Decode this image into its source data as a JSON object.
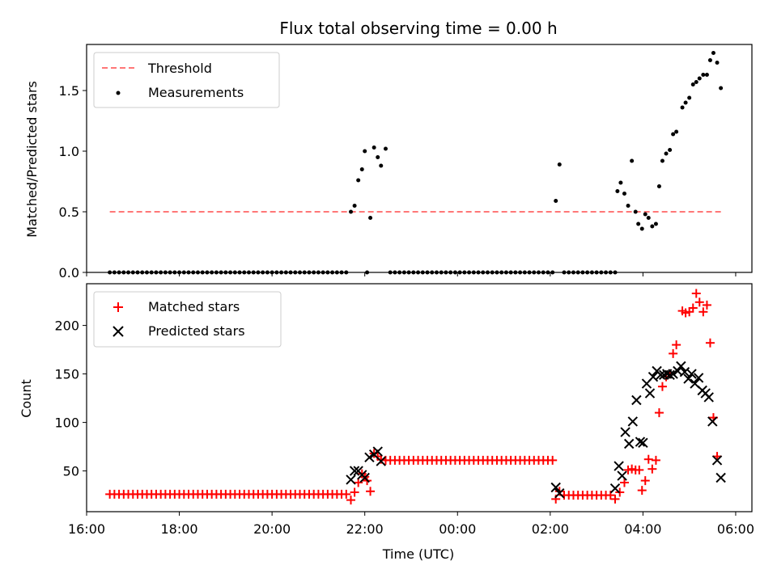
{
  "chart_data": [
    {
      "panel": "top",
      "type": "scatter",
      "title": "Flux total observing time = 0.00 h",
      "xlabel": "",
      "ylabel": "Matched/Predicted stars",
      "xlim": [
        16.0,
        6.35
      ],
      "ylim": [
        0.0,
        1.88
      ],
      "yticks": [
        0.0,
        0.5,
        1.0,
        1.5
      ],
      "ytick_labels": [
        "0.0",
        "0.5",
        "1.0",
        "1.5"
      ],
      "legend": {
        "placement": "top-left",
        "entries": [
          "Threshold",
          "Measurements"
        ]
      },
      "threshold": {
        "name": "Threshold",
        "value": 0.5,
        "x_start": 16.5,
        "x_end": 5.75,
        "color": "#ff7777"
      },
      "measurements": {
        "name": "Measurements",
        "color": "#000000",
        "points": [
          [
            16.5,
            0
          ],
          [
            16.6,
            0
          ],
          [
            16.7,
            0
          ],
          [
            16.8,
            0
          ],
          [
            16.9,
            0
          ],
          [
            17.0,
            0
          ],
          [
            17.1,
            0
          ],
          [
            17.2,
            0
          ],
          [
            17.3,
            0
          ],
          [
            17.4,
            0
          ],
          [
            17.5,
            0
          ],
          [
            17.6,
            0
          ],
          [
            17.7,
            0
          ],
          [
            17.8,
            0
          ],
          [
            17.9,
            0
          ],
          [
            18.0,
            0
          ],
          [
            18.1,
            0
          ],
          [
            18.2,
            0
          ],
          [
            18.3,
            0
          ],
          [
            18.4,
            0
          ],
          [
            18.5,
            0
          ],
          [
            18.6,
            0
          ],
          [
            18.7,
            0
          ],
          [
            18.8,
            0
          ],
          [
            18.9,
            0
          ],
          [
            19.0,
            0
          ],
          [
            19.1,
            0
          ],
          [
            19.2,
            0
          ],
          [
            19.3,
            0
          ],
          [
            19.4,
            0
          ],
          [
            19.5,
            0
          ],
          [
            19.6,
            0
          ],
          [
            19.7,
            0
          ],
          [
            19.8,
            0
          ],
          [
            19.9,
            0
          ],
          [
            20.0,
            0
          ],
          [
            20.1,
            0
          ],
          [
            20.2,
            0
          ],
          [
            20.3,
            0
          ],
          [
            20.4,
            0
          ],
          [
            20.5,
            0
          ],
          [
            20.6,
            0
          ],
          [
            20.7,
            0
          ],
          [
            20.8,
            0
          ],
          [
            20.9,
            0
          ],
          [
            21.0,
            0
          ],
          [
            21.1,
            0
          ],
          [
            21.2,
            0
          ],
          [
            21.3,
            0
          ],
          [
            21.4,
            0
          ],
          [
            21.5,
            0
          ],
          [
            21.6,
            0
          ],
          [
            21.7,
            0.5
          ],
          [
            21.78,
            0.55
          ],
          [
            21.86,
            0.76
          ],
          [
            21.94,
            0.85
          ],
          [
            22.0,
            1.0
          ],
          [
            22.05,
            0.0
          ],
          [
            22.12,
            0.45
          ],
          [
            22.2,
            1.03
          ],
          [
            22.28,
            0.95
          ],
          [
            22.35,
            0.88
          ],
          [
            22.45,
            1.02
          ],
          [
            22.55,
            0
          ],
          [
            22.65,
            0
          ],
          [
            22.75,
            0
          ],
          [
            22.85,
            0
          ],
          [
            22.95,
            0
          ],
          [
            23.05,
            0
          ],
          [
            23.15,
            0
          ],
          [
            23.25,
            0
          ],
          [
            23.35,
            0
          ],
          [
            23.45,
            0
          ],
          [
            23.55,
            0
          ],
          [
            23.65,
            0
          ],
          [
            23.75,
            0
          ],
          [
            23.85,
            0
          ],
          [
            23.95,
            0
          ],
          [
            24.05,
            0
          ],
          [
            24.15,
            0
          ],
          [
            24.25,
            0
          ],
          [
            24.35,
            0
          ],
          [
            24.45,
            0
          ],
          [
            24.55,
            0
          ],
          [
            24.65,
            0
          ],
          [
            24.75,
            0
          ],
          [
            24.85,
            0
          ],
          [
            24.95,
            0
          ],
          [
            25.05,
            0
          ],
          [
            25.15,
            0
          ],
          [
            25.25,
            0
          ],
          [
            25.35,
            0
          ],
          [
            25.45,
            0
          ],
          [
            25.55,
            0
          ],
          [
            25.65,
            0
          ],
          [
            25.75,
            0
          ],
          [
            25.85,
            0
          ],
          [
            25.95,
            0
          ],
          [
            26.05,
            0
          ],
          [
            26.12,
            0.59
          ],
          [
            26.2,
            0.89
          ],
          [
            26.3,
            0
          ],
          [
            26.4,
            0
          ],
          [
            26.5,
            0
          ],
          [
            26.6,
            0
          ],
          [
            26.7,
            0
          ],
          [
            26.8,
            0
          ],
          [
            26.9,
            0
          ],
          [
            27.0,
            0
          ],
          [
            27.1,
            0
          ],
          [
            27.2,
            0
          ],
          [
            27.3,
            0
          ],
          [
            27.4,
            0
          ],
          [
            27.45,
            0.67
          ],
          [
            27.52,
            0.74
          ],
          [
            27.6,
            0.65
          ],
          [
            27.68,
            0.55
          ],
          [
            27.76,
            0.92
          ],
          [
            27.84,
            0.5
          ],
          [
            27.9,
            0.4
          ],
          [
            27.98,
            0.36
          ],
          [
            28.05,
            0.48
          ],
          [
            28.12,
            0.45
          ],
          [
            28.2,
            0.38
          ],
          [
            28.28,
            0.4
          ],
          [
            28.35,
            0.71
          ],
          [
            28.42,
            0.92
          ],
          [
            28.5,
            0.98
          ],
          [
            28.58,
            1.01
          ],
          [
            28.65,
            1.14
          ],
          [
            28.72,
            1.16
          ],
          [
            28.85,
            1.36
          ],
          [
            28.92,
            1.4
          ],
          [
            29.0,
            1.44
          ],
          [
            29.08,
            1.55
          ],
          [
            29.15,
            1.57
          ],
          [
            29.22,
            1.6
          ],
          [
            29.3,
            1.63
          ],
          [
            29.38,
            1.63
          ],
          [
            29.45,
            1.75
          ],
          [
            29.52,
            1.81
          ],
          [
            29.6,
            1.73
          ],
          [
            29.68,
            1.52
          ]
        ]
      }
    },
    {
      "panel": "bottom",
      "type": "scatter",
      "title": "",
      "xlabel": "Time (UTC)",
      "ylabel": "Count",
      "xlim": [
        16.0,
        6.35
      ],
      "ylim": [
        8,
        243
      ],
      "xticks": [
        16,
        18,
        20,
        22,
        24,
        26,
        28,
        30
      ],
      "xtick_labels": [
        "16:00",
        "18:00",
        "20:00",
        "22:00",
        "00:00",
        "02:00",
        "04:00",
        "06:00"
      ],
      "yticks": [
        50,
        100,
        150,
        200
      ],
      "ytick_labels": [
        "50",
        "100",
        "150",
        "200"
      ],
      "legend": {
        "placement": "top-left",
        "entries": [
          "Matched stars",
          "Predicted stars"
        ]
      },
      "series": [
        {
          "name": "Matched stars",
          "marker": "plus",
          "color": "#ff0000",
          "baseline_runs": [
            {
              "x_start": 16.5,
              "x_end": 21.6,
              "step": 0.1,
              "value": 26
            },
            {
              "x_start": 22.55,
              "x_end": 26.05,
              "step": 0.1,
              "value": 61
            },
            {
              "x_start": 26.3,
              "x_end": 27.3,
              "step": 0.1,
              "value": 25
            }
          ],
          "points": [
            [
              21.7,
              20
            ],
            [
              21.78,
              28
            ],
            [
              21.86,
              38
            ],
            [
              21.94,
              47
            ],
            [
              22.0,
              44
            ],
            [
              22.05,
              40
            ],
            [
              22.12,
              29
            ],
            [
              22.2,
              68
            ],
            [
              22.28,
              65
            ],
            [
              22.35,
              62
            ],
            [
              22.45,
              61
            ],
            [
              26.12,
              21
            ],
            [
              26.2,
              29
            ],
            [
              27.4,
              21
            ],
            [
              27.5,
              28
            ],
            [
              27.6,
              38
            ],
            [
              27.68,
              51
            ],
            [
              27.76,
              52
            ],
            [
              27.84,
              51
            ],
            [
              27.92,
              51
            ],
            [
              27.98,
              30
            ],
            [
              28.05,
              40
            ],
            [
              28.12,
              62
            ],
            [
              28.2,
              52
            ],
            [
              28.28,
              61
            ],
            [
              28.35,
              110
            ],
            [
              28.42,
              137
            ],
            [
              28.5,
              147
            ],
            [
              28.58,
              150
            ],
            [
              28.65,
              171
            ],
            [
              28.72,
              180
            ],
            [
              28.85,
              215
            ],
            [
              28.92,
              213
            ],
            [
              29.0,
              214
            ],
            [
              29.08,
              218
            ],
            [
              29.15,
              233
            ],
            [
              29.22,
              224
            ],
            [
              29.3,
              214
            ],
            [
              29.38,
              221
            ],
            [
              29.45,
              182
            ],
            [
              29.52,
              105
            ],
            [
              29.6,
              65
            ]
          ]
        },
        {
          "name": "Predicted stars",
          "marker": "x",
          "color": "#000000",
          "points": [
            [
              21.7,
              41
            ],
            [
              21.78,
              50
            ],
            [
              21.86,
              50
            ],
            [
              21.94,
              46
            ],
            [
              22.0,
              43
            ],
            [
              22.1,
              64
            ],
            [
              22.2,
              67
            ],
            [
              22.28,
              70
            ],
            [
              22.35,
              60
            ],
            [
              26.12,
              33
            ],
            [
              26.2,
              27
            ],
            [
              27.4,
              32
            ],
            [
              27.48,
              55
            ],
            [
              27.55,
              45
            ],
            [
              27.62,
              90
            ],
            [
              27.7,
              78
            ],
            [
              27.78,
              101
            ],
            [
              27.86,
              123
            ],
            [
              27.94,
              80
            ],
            [
              28.0,
              79
            ],
            [
              28.08,
              140
            ],
            [
              28.15,
              130
            ],
            [
              28.22,
              147
            ],
            [
              28.3,
              153
            ],
            [
              28.38,
              149
            ],
            [
              28.45,
              149
            ],
            [
              28.52,
              150
            ],
            [
              28.58,
              149
            ],
            [
              28.65,
              150
            ],
            [
              28.75,
              153
            ],
            [
              28.82,
              158
            ],
            [
              28.9,
              152
            ],
            [
              28.98,
              145
            ],
            [
              29.05,
              150
            ],
            [
              29.12,
              140
            ],
            [
              29.2,
              146
            ],
            [
              29.28,
              133
            ],
            [
              29.35,
              130
            ],
            [
              29.42,
              126
            ],
            [
              29.5,
              101
            ],
            [
              29.6,
              61
            ],
            [
              29.68,
              43
            ]
          ]
        }
      ]
    }
  ]
}
